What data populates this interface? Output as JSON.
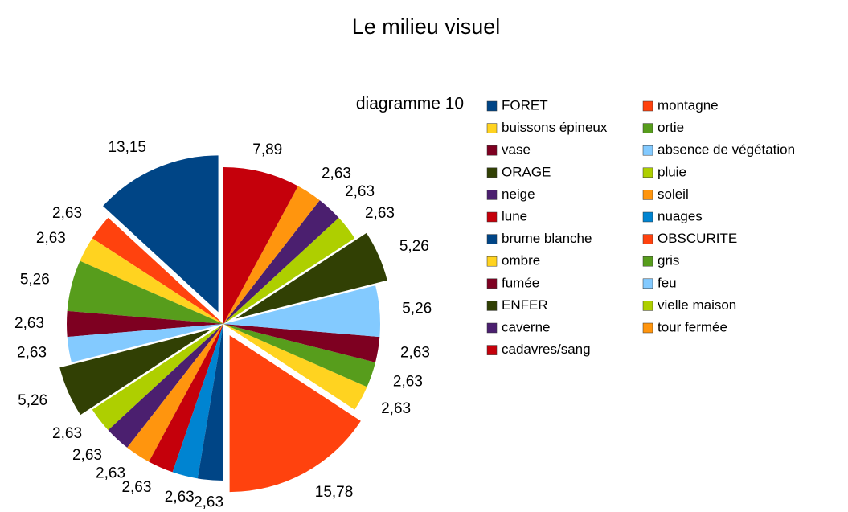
{
  "chart_data": {
    "type": "pie",
    "title": "Le milieu visuel",
    "subtitle": "diagramme 10",
    "categories": [
      "FORET",
      "montagne",
      "buissons épineux",
      "ortie",
      "vase",
      "absence de végétation",
      "ORAGE",
      "pluie",
      "neige",
      "soleil",
      "lune",
      "nuages",
      "brume blanche",
      "OBSCURITE",
      "ombre",
      "gris",
      "fumée",
      "feu",
      "ENFER",
      "vielle maison",
      "caverne",
      "tour fermée",
      "cadavres/sang"
    ],
    "values": [
      13.15,
      2.63,
      2.63,
      5.26,
      2.63,
      2.63,
      5.26,
      2.63,
      2.63,
      2.63,
      2.63,
      2.63,
      2.63,
      15.78,
      2.63,
      2.63,
      2.63,
      5.26,
      5.26,
      2.63,
      2.63,
      2.63,
      7.89
    ],
    "value_labels": [
      "13,15",
      "2,63",
      "2,63",
      "5,26",
      "2,63",
      "2,63",
      "5,26",
      "2,63",
      "2,63",
      "2,63",
      "2,63",
      "2,63",
      "2,63",
      "15,78",
      "2,63",
      "2,63",
      "2,63",
      "5,26",
      "5,26",
      "2,63",
      "2,63",
      "2,63",
      "7,89"
    ],
    "colors": [
      "#004586",
      "#ff420e",
      "#ffd320",
      "#579d1c",
      "#7e0021",
      "#83caff",
      "#314004",
      "#aecf00",
      "#4b1f6f",
      "#ff950e",
      "#c5000b",
      "#0084d1",
      "#004586",
      "#ff420e",
      "#ffd320",
      "#579d1c",
      "#7e0021",
      "#83caff",
      "#314004",
      "#aecf00",
      "#4b1f6f",
      "#ff950e",
      "#c5000b"
    ],
    "exploded": [
      "FORET",
      "ORAGE",
      "OBSCURITE",
      "ENFER"
    ],
    "legend": "right"
  }
}
